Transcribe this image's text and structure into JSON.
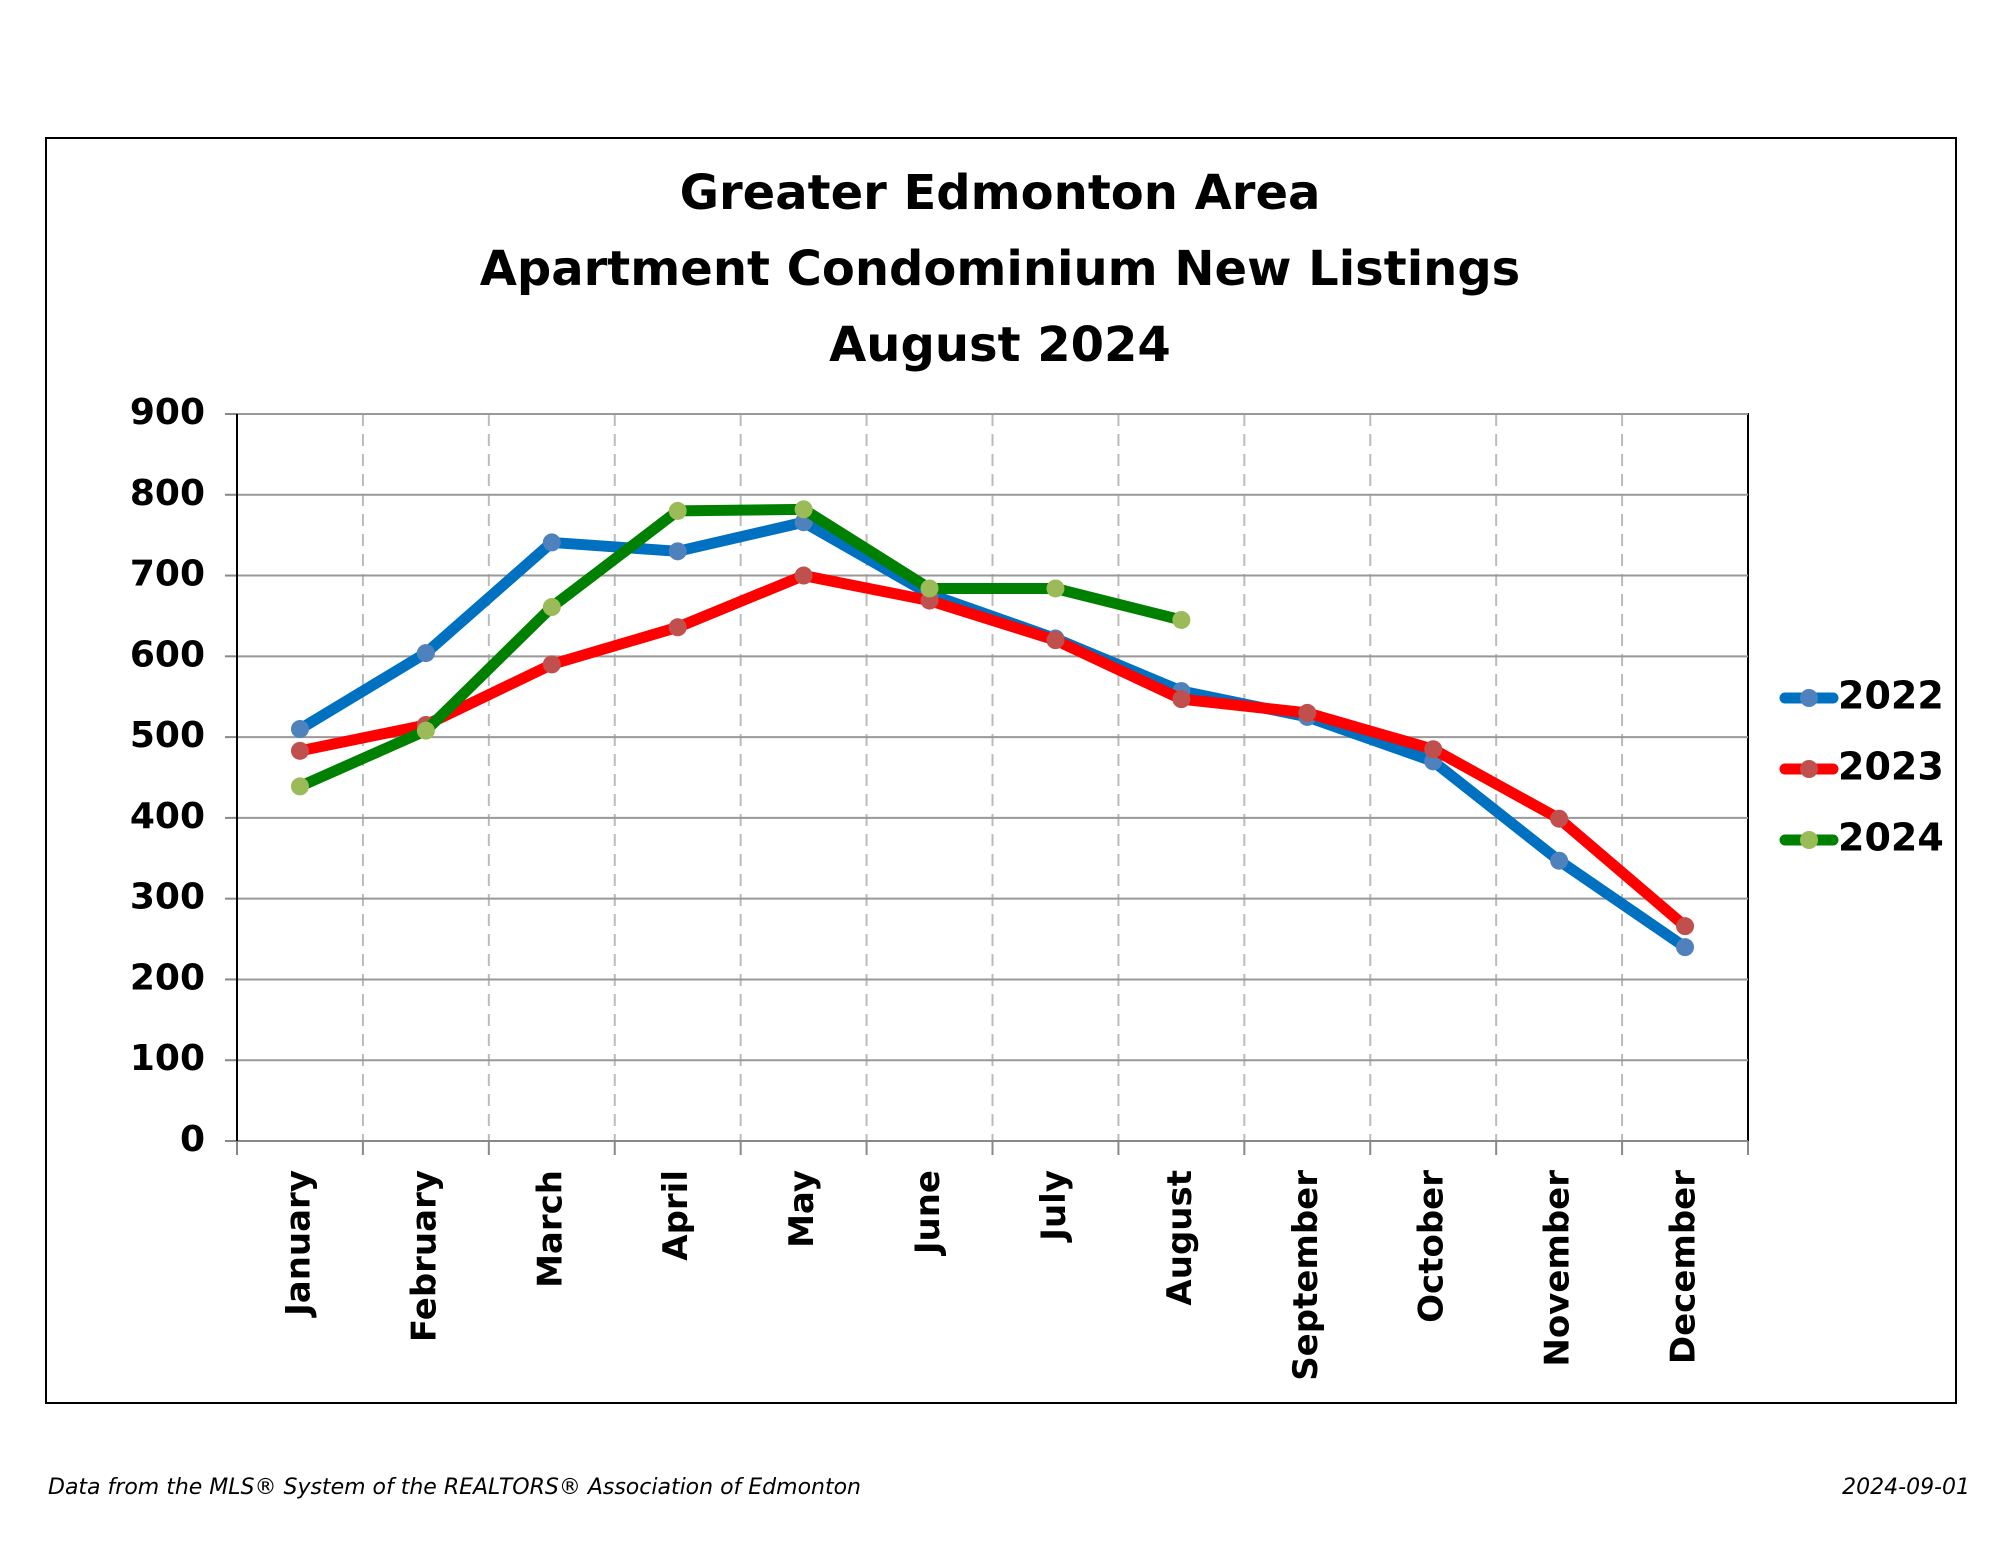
{
  "chart_data": {
    "type": "line",
    "title": [
      "Greater Edmonton Area",
      "Apartment Condominium New Listings",
      "August 2024"
    ],
    "categories": [
      "January",
      "February",
      "March",
      "April",
      "May",
      "June",
      "July",
      "August",
      "September",
      "October",
      "November",
      "December"
    ],
    "series": [
      {
        "name": "2022",
        "color": "#0070c0",
        "marker_color": "#4f81bd",
        "values": [
          510,
          604,
          741,
          730,
          766,
          677,
          622,
          557,
          525,
          470,
          347,
          240
        ]
      },
      {
        "name": "2023",
        "color": "#ff0000",
        "marker_color": "#c0504d",
        "values": [
          483,
          515,
          590,
          636,
          700,
          669,
          620,
          547,
          530,
          485,
          399,
          266
        ]
      },
      {
        "name": "2024",
        "color": "#008000",
        "marker_color": "#9bbb59",
        "values": [
          439,
          508,
          661,
          780,
          782,
          684,
          684,
          645,
          null,
          null,
          null,
          null
        ]
      }
    ],
    "ylim": [
      0,
      900
    ],
    "yticks": [
      0,
      100,
      200,
      300,
      400,
      500,
      600,
      700,
      800,
      900
    ],
    "grid": true,
    "legend": "right",
    "source": "Data from the MLS® System of the REALTORS® Association of Edmonton",
    "date": "2024-09-01"
  }
}
